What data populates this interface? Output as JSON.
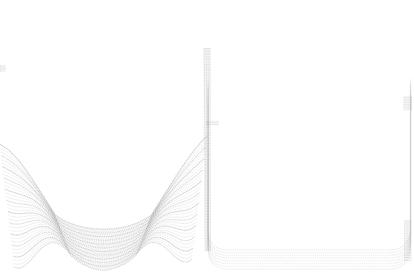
{
  "figure": {
    "title": "",
    "description_visible_text": {
      "top": "",
      "left_edge": "",
      "right_edge": "",
      "middle": ""
    }
  },
  "colors": {
    "background": "#ffffff",
    "stroke": "#6b6b6b",
    "stroke_light": "#9a9a9a"
  }
}
